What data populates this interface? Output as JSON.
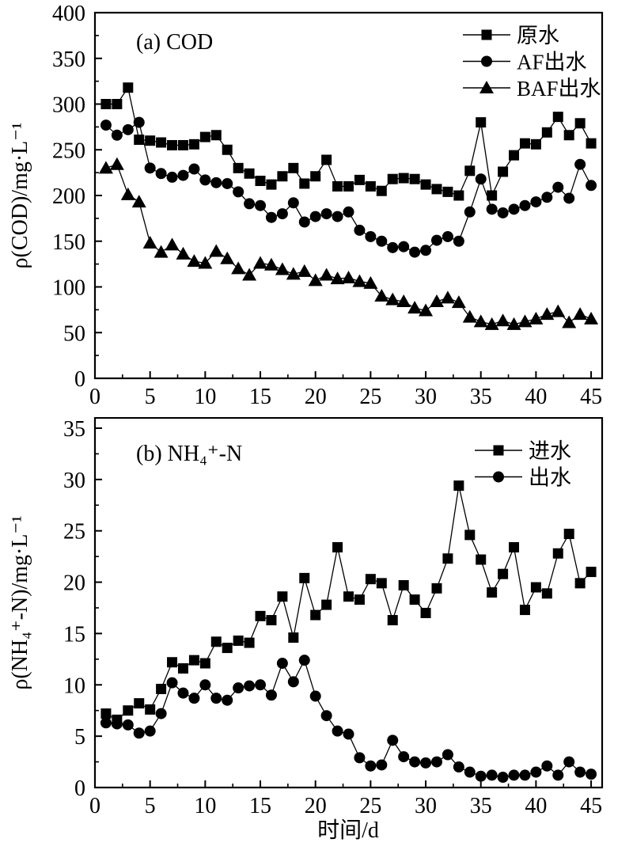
{
  "page": {
    "background": "#ffffff",
    "ink": "#000000"
  },
  "chart_data": [
    {
      "type": "line",
      "panel_label": "(a)  COD",
      "ylabel": "ρ(COD)/mg·L⁻¹",
      "xlabel": "",
      "xlim": [
        0,
        46
      ],
      "ylim": [
        0,
        400
      ],
      "xticks": [
        0,
        5,
        10,
        15,
        20,
        25,
        30,
        35,
        40,
        45
      ],
      "yticks": [
        0,
        50,
        100,
        150,
        200,
        250,
        300,
        350,
        400
      ],
      "minor_ticks": true,
      "grid": false,
      "legend_position": "top-right-inside",
      "x": [
        1,
        2,
        3,
        4,
        5,
        6,
        7,
        8,
        9,
        10,
        11,
        12,
        13,
        14,
        15,
        16,
        17,
        18,
        19,
        20,
        21,
        22,
        23,
        24,
        25,
        26,
        27,
        28,
        29,
        30,
        31,
        32,
        33,
        34,
        35,
        36,
        37,
        38,
        39,
        40,
        41,
        42,
        43,
        44,
        45
      ],
      "series": [
        {
          "name": "原水",
          "marker": "square",
          "values": [
            300,
            300,
            318,
            261,
            260,
            258,
            255,
            255,
            256,
            264,
            266,
            250,
            230,
            224,
            216,
            212,
            221,
            230,
            213,
            221,
            239,
            210,
            210,
            217,
            210,
            205,
            218,
            219,
            218,
            212,
            207,
            204,
            200,
            227,
            280,
            200,
            226,
            244,
            257,
            256,
            269,
            286,
            266,
            279,
            257
          ]
        },
        {
          "name": "AF出水",
          "marker": "circle",
          "values": [
            277,
            266,
            272,
            280,
            230,
            224,
            220,
            222,
            229,
            217,
            214,
            213,
            204,
            191,
            189,
            176,
            180,
            192,
            171,
            177,
            180,
            177,
            182,
            162,
            155,
            150,
            143,
            144,
            138,
            140,
            151,
            155,
            150,
            182,
            218,
            185,
            181,
            185,
            189,
            193,
            198,
            209,
            197,
            234,
            211
          ]
        },
        {
          "name": "BAF出水",
          "marker": "triangle",
          "values": [
            230,
            234,
            201,
            193,
            148,
            138,
            146,
            136,
            128,
            126,
            139,
            131,
            120,
            113,
            126,
            124,
            119,
            114,
            117,
            107,
            113,
            109,
            110,
            106,
            104,
            90,
            86,
            84,
            77,
            74,
            84,
            88,
            83,
            67,
            62,
            59,
            63,
            59,
            62,
            65,
            70,
            73,
            61,
            70,
            65
          ]
        }
      ]
    },
    {
      "type": "line",
      "panel_label": "(b) NH₄⁺-N",
      "ylabel": "ρ(NH₄⁺-N)/mg·L⁻¹",
      "xlabel": "时间/d",
      "xlim": [
        0,
        46
      ],
      "ylim": [
        0,
        36
      ],
      "xticks": [
        0,
        5,
        10,
        15,
        20,
        25,
        30,
        35,
        40,
        45
      ],
      "yticks": [
        0,
        5,
        10,
        15,
        20,
        25,
        30,
        35
      ],
      "minor_ticks": true,
      "grid": false,
      "legend_position": "top-right-inside",
      "x": [
        1,
        2,
        3,
        4,
        5,
        6,
        7,
        8,
        9,
        10,
        11,
        12,
        13,
        14,
        15,
        16,
        17,
        18,
        19,
        20,
        21,
        22,
        23,
        24,
        25,
        26,
        27,
        28,
        29,
        30,
        31,
        32,
        33,
        34,
        35,
        36,
        37,
        38,
        39,
        40,
        41,
        42,
        43,
        44,
        45
      ],
      "series": [
        {
          "name": "进水",
          "marker": "square",
          "values": [
            7.2,
            6.6,
            7.5,
            8.2,
            7.6,
            9.6,
            12.2,
            11.6,
            12.4,
            12.1,
            14.2,
            13.6,
            14.3,
            14.1,
            16.7,
            16.3,
            18.6,
            14.6,
            20.4,
            16.8,
            17.8,
            23.4,
            18.6,
            18.3,
            20.3,
            19.9,
            16.3,
            19.7,
            18.3,
            17.0,
            19.4,
            22.3,
            29.4,
            24.6,
            22.2,
            19.0,
            20.8,
            23.4,
            17.3,
            19.5,
            18.9,
            22.8,
            24.7,
            19.9,
            21.0
          ]
        },
        {
          "name": "出水",
          "marker": "circle",
          "values": [
            6.3,
            6.2,
            6.1,
            5.3,
            5.5,
            7.2,
            10.2,
            9.2,
            8.7,
            10.0,
            8.7,
            8.5,
            9.7,
            9.9,
            10.0,
            9.0,
            12.1,
            10.3,
            12.4,
            8.9,
            7.0,
            5.5,
            5.2,
            2.9,
            2.1,
            2.2,
            4.6,
            3.0,
            2.5,
            2.4,
            2.5,
            3.2,
            2.0,
            1.5,
            1.1,
            1.2,
            1.0,
            1.2,
            1.2,
            1.5,
            2.1,
            1.2,
            2.5,
            1.5,
            1.3
          ]
        }
      ]
    }
  ]
}
